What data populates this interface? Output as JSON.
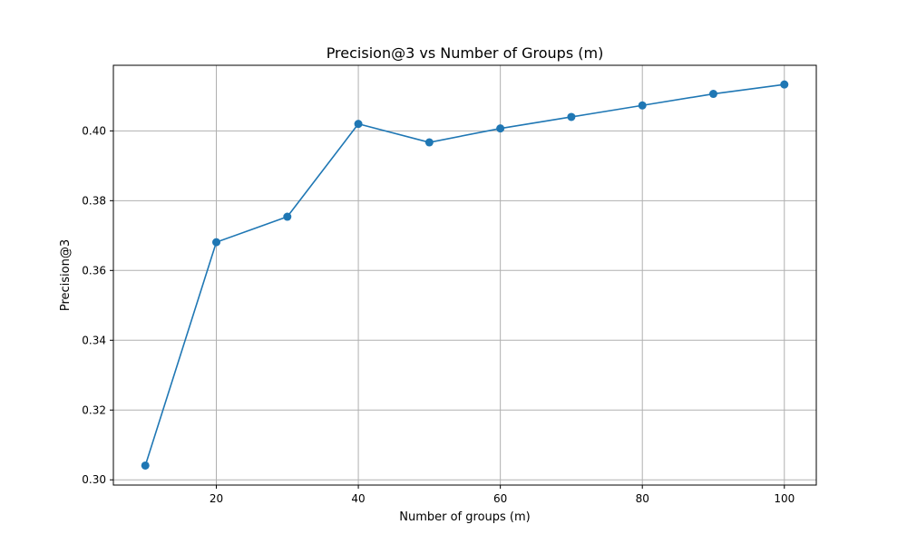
{
  "chart_data": {
    "type": "line",
    "title": "Precision@3 vs Number of Groups (m)",
    "xlabel": "Number of groups (m)",
    "ylabel": "Precision@3",
    "x": [
      10,
      20,
      30,
      40,
      50,
      60,
      70,
      80,
      90,
      100
    ],
    "series": [
      {
        "values": [
          0.3041,
          0.3681,
          0.3754,
          0.402,
          0.3967,
          0.4007,
          0.404,
          0.4073,
          0.4106,
          0.4133
        ],
        "color": "#1f77b4",
        "marker": "circle"
      }
    ],
    "xlim": [
      5.5,
      104.5
    ],
    "ylim": [
      0.2985,
      0.4188
    ],
    "x_ticks": [
      20,
      40,
      60,
      80,
      100
    ],
    "x_tick_labels": [
      "20",
      "40",
      "60",
      "80",
      "100"
    ],
    "y_ticks": [
      0.3,
      0.32,
      0.34,
      0.36,
      0.38,
      0.4
    ],
    "y_tick_labels": [
      "0.30",
      "0.32",
      "0.34",
      "0.36",
      "0.38",
      "0.40"
    ],
    "grid": true,
    "legend": false
  }
}
